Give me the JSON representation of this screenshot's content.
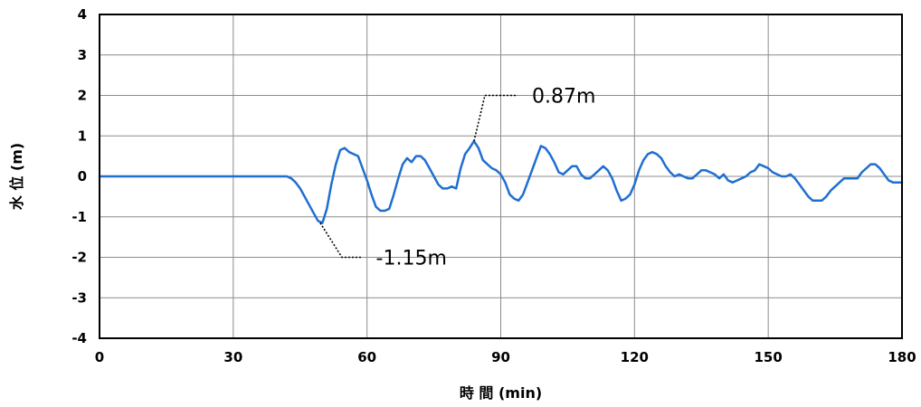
{
  "chart_data": {
    "type": "line",
    "xlabel": "時 間 (min)",
    "ylabel": "水 位 (m)",
    "xlim": [
      0,
      180
    ],
    "ylim": [
      -4,
      4
    ],
    "x_ticks": [
      "0",
      "30",
      "60",
      "90",
      "120",
      "150",
      "180"
    ],
    "y_ticks": [
      "4",
      "3",
      "2",
      "1",
      "0",
      "-1",
      "-2",
      "-3",
      "-4"
    ],
    "grid": true,
    "line_color": "#1f6fd1",
    "series": [
      {
        "x": [
          0,
          30,
          42,
          43,
          44,
          45,
          46,
          47,
          48,
          49,
          50,
          51,
          52,
          53,
          54,
          55,
          56,
          57,
          58,
          59,
          60,
          61,
          62,
          63,
          64,
          65,
          66,
          67,
          68,
          69,
          70,
          71,
          72,
          73,
          74,
          75,
          76,
          77,
          78,
          79,
          80,
          81,
          82,
          83,
          84,
          85,
          86,
          87,
          88,
          89,
          90,
          91,
          92,
          93,
          94,
          95,
          96,
          97,
          98,
          99,
          100,
          101,
          102,
          103,
          104,
          105,
          106,
          107,
          108,
          109,
          110,
          111,
          112,
          113,
          114,
          115,
          116,
          117,
          118,
          119,
          120,
          121,
          122,
          123,
          124,
          125,
          126,
          127,
          128,
          129,
          130,
          131,
          132,
          133,
          134,
          135,
          136,
          137,
          138,
          139,
          140,
          141,
          142,
          143,
          144,
          145,
          146,
          147,
          148,
          149,
          150,
          151,
          152,
          153,
          154,
          155,
          156,
          157,
          158,
          159,
          160,
          161,
          162,
          163,
          164,
          165,
          166,
          167,
          168,
          169,
          170,
          171,
          172,
          173,
          174,
          175,
          176,
          177,
          178,
          179,
          180
        ],
        "y": [
          0,
          0,
          0,
          -0.05,
          -0.15,
          -0.3,
          -0.5,
          -0.7,
          -0.9,
          -1.1,
          -1.15,
          -0.8,
          -0.2,
          0.3,
          0.65,
          0.7,
          0.6,
          0.55,
          0.5,
          0.2,
          -0.1,
          -0.45,
          -0.75,
          -0.85,
          -0.85,
          -0.8,
          -0.45,
          -0.05,
          0.3,
          0.45,
          0.35,
          0.5,
          0.5,
          0.4,
          0.2,
          0.0,
          -0.2,
          -0.3,
          -0.3,
          -0.25,
          -0.3,
          0.2,
          0.55,
          0.7,
          0.87,
          0.7,
          0.4,
          0.3,
          0.2,
          0.15,
          0.05,
          -0.15,
          -0.45,
          -0.55,
          -0.6,
          -0.45,
          -0.15,
          0.15,
          0.45,
          0.75,
          0.7,
          0.55,
          0.35,
          0.1,
          0.05,
          0.15,
          0.25,
          0.25,
          0.05,
          -0.05,
          -0.05,
          0.05,
          0.15,
          0.25,
          0.15,
          -0.05,
          -0.35,
          -0.6,
          -0.55,
          -0.45,
          -0.2,
          0.15,
          0.4,
          0.55,
          0.6,
          0.55,
          0.45,
          0.25,
          0.1,
          0.0,
          0.05,
          0.0,
          -0.05,
          -0.05,
          0.05,
          0.15,
          0.15,
          0.1,
          0.05,
          -0.05,
          0.05,
          -0.1,
          -0.15,
          -0.1,
          -0.05,
          0.0,
          0.1,
          0.15,
          0.3,
          0.25,
          0.2,
          0.1,
          0.05,
          0.0,
          0.0,
          0.05,
          -0.05,
          -0.2,
          -0.35,
          -0.5,
          -0.6,
          -0.6,
          -0.6,
          -0.5,
          -0.35,
          -0.25,
          -0.15,
          -0.05,
          -0.05,
          -0.05,
          -0.05,
          0.1,
          0.2,
          0.3,
          0.3,
          0.2,
          0.05,
          -0.1,
          -0.15,
          -0.15,
          -0.15
        ]
      }
    ],
    "annotations": [
      {
        "label": "0.87m",
        "x": 84,
        "y": 0.87,
        "text_x": 97,
        "text_y": 2.0
      },
      {
        "label": "-1.15m",
        "x": 49.5,
        "y": -1.15,
        "text_x": 62,
        "text_y": -2.0
      }
    ]
  }
}
